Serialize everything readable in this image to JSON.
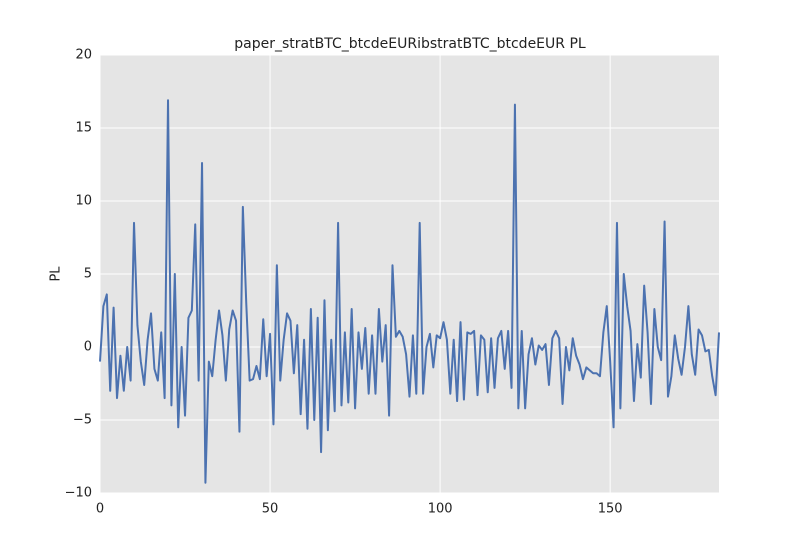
{
  "chart_data": {
    "type": "line",
    "title": "paper_stratBTC_btcdeEURibstratBTC_btcdeEUR PL",
    "ylabel": "PL",
    "series": [
      {
        "color": "#4c72b0",
        "values": [
          -1,
          2.8,
          3.6,
          -3,
          2.7,
          -3.5,
          -0.6,
          -3,
          0,
          -2.3,
          8.5,
          1.5,
          -1,
          -2.6,
          0.5,
          2.3,
          -1.5,
          -2.3,
          1,
          -3.5,
          16.9,
          -4,
          5,
          -5.5,
          0,
          -4.7,
          2,
          2.5,
          8.4,
          -2.3,
          12.6,
          -9.3,
          -1,
          -2,
          0.5,
          2.5,
          0.8,
          -2.3,
          1.2,
          2.5,
          1.8,
          -5.8,
          9.6,
          3,
          -2.3,
          -2.2,
          -1.3,
          -2.2,
          1.9,
          -2,
          0.9,
          -5.3,
          5.6,
          -2.3,
          0.5,
          2.3,
          1.8,
          -1.8,
          1.5,
          -4.6,
          0.5,
          -5.6,
          2.6,
          -5,
          2,
          -7.2,
          3.2,
          -5.7,
          0.5,
          -4.4,
          8.5,
          -4,
          1,
          -3.8,
          2.6,
          -4.2,
          1,
          -1.5,
          1.3,
          -3.2,
          0.8,
          -3.2,
          2.6,
          -1,
          1.5,
          -4.7,
          5.6,
          0.7,
          1.1,
          0.7,
          -0.5,
          -3.4,
          0.8,
          -3.2,
          8.5,
          -3.2,
          0,
          0.9,
          -1.4,
          0.8,
          0.6,
          1.7,
          0.5,
          -3.2,
          0.5,
          -3.7,
          1.7,
          -3.6,
          1,
          0.9,
          1.1,
          -3.3,
          0.8,
          0.5,
          -3.1,
          0.6,
          -2.8,
          0.6,
          1.1,
          -1.5,
          1.1,
          -2.8,
          16.6,
          -4.2,
          1.1,
          -4.2,
          -0.5,
          0.6,
          -1.2,
          0.1,
          -0.2,
          0.2,
          -2.6,
          0.6,
          1.1,
          0.6,
          -3.9,
          0,
          -1.6,
          0.6,
          -0.6,
          -1.2,
          -2.2,
          -1.4,
          -1.6,
          -1.8,
          -1.8,
          -2,
          1,
          2.8,
          -1,
          -5.5,
          8.5,
          -4.2,
          5,
          2.8,
          1.1,
          -3.7,
          0.2,
          -2.1,
          4.2,
          1,
          -3.9,
          2.6,
          0,
          -0.9,
          8.6,
          -3.4,
          -2,
          0.8,
          -0.8,
          -1.9,
          0,
          2.8,
          -0.5,
          -1.9,
          1.2,
          0.8,
          -0.3,
          -0.2,
          -2,
          -3.3,
          1
        ]
      }
    ],
    "xlim": [
      0,
      182
    ],
    "xticks": [
      0,
      50,
      100,
      150
    ],
    "ylim": [
      -10,
      20
    ],
    "yticks": [
      {
        "value": -10,
        "label": "−10"
      },
      {
        "value": -5,
        "label": "−5"
      },
      0,
      5,
      10,
      15,
      20
    ],
    "grid": true
  }
}
